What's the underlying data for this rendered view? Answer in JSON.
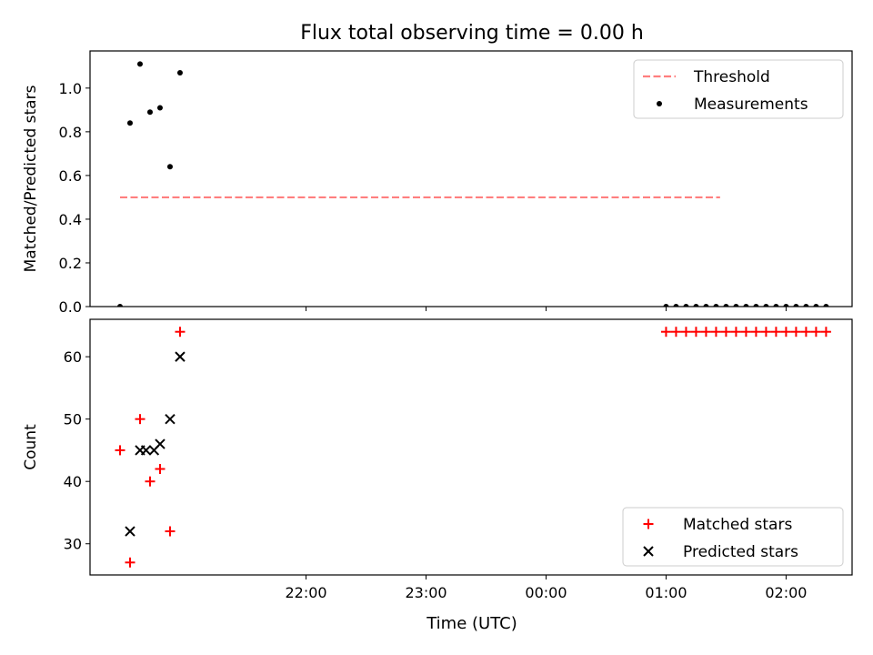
{
  "chart_data": {
    "title": "Flux total observing time = 0.00 h",
    "xlabel": "Time (UTC)",
    "x_unit": "minutes after 21:00 UTC",
    "xlim": [
      -48,
      333
    ],
    "xticks": [
      {
        "value": 60,
        "label": "22:00"
      },
      {
        "value": 120,
        "label": "23:00"
      },
      {
        "value": 180,
        "label": "00:00"
      },
      {
        "value": 240,
        "label": "01:00"
      },
      {
        "value": 300,
        "label": "02:00"
      }
    ],
    "panels": [
      {
        "type": "scatter",
        "ylabel": "Matched/Predicted stars",
        "ylim": [
          0,
          1.17
        ],
        "yticks": [
          "0.0",
          "0.2",
          "0.4",
          "0.6",
          "0.8",
          "1.0"
        ],
        "legend": "top-right",
        "series": [
          {
            "name": "Threshold",
            "type": "line",
            "style": "dashed",
            "color": "#ff7f7f",
            "x": [
              -33,
              267
            ],
            "y": [
              0.5,
              0.5
            ]
          },
          {
            "name": "Measurements",
            "type": "scatter",
            "marker": "dot",
            "color": "#000000",
            "x": [
              -33,
              -28,
              -23,
              -18,
              -13,
              -8,
              -3,
              240,
              245,
              250,
              255,
              260,
              265,
              270,
              275,
              280,
              285,
              290,
              295,
              300,
              305,
              310,
              315,
              320
            ],
            "y": [
              0.0,
              0.84,
              1.11,
              0.89,
              0.91,
              0.64,
              1.07,
              0,
              0,
              0,
              0,
              0,
              0,
              0,
              0,
              0,
              0,
              0,
              0,
              0,
              0,
              0,
              0,
              0
            ]
          }
        ]
      },
      {
        "type": "scatter",
        "ylabel": "Count",
        "ylim": [
          25,
          66
        ],
        "yticks": [
          "30",
          "40",
          "50",
          "60"
        ],
        "legend": "bottom-right",
        "series": [
          {
            "name": "Matched stars",
            "type": "scatter",
            "marker": "plus",
            "color": "#ff0000",
            "x": [
              -33,
              -28,
              -23,
              -18,
              -13,
              -8,
              -3,
              240,
              245,
              250,
              255,
              260,
              265,
              270,
              275,
              280,
              285,
              290,
              295,
              300,
              305,
              310,
              315,
              320
            ],
            "y": [
              45,
              27,
              50,
              40,
              42,
              32,
              64,
              64,
              64,
              64,
              64,
              64,
              64,
              64,
              64,
              64,
              64,
              64,
              64,
              64,
              64,
              64,
              64,
              64
            ]
          },
          {
            "name": "Predicted stars",
            "type": "scatter",
            "marker": "x",
            "color": "#000000",
            "x": [
              -28,
              -23,
              -20,
              -16,
              -13,
              -8,
              -3
            ],
            "y": [
              32,
              45,
              45,
              45,
              46,
              50,
              60
            ]
          }
        ]
      }
    ]
  }
}
